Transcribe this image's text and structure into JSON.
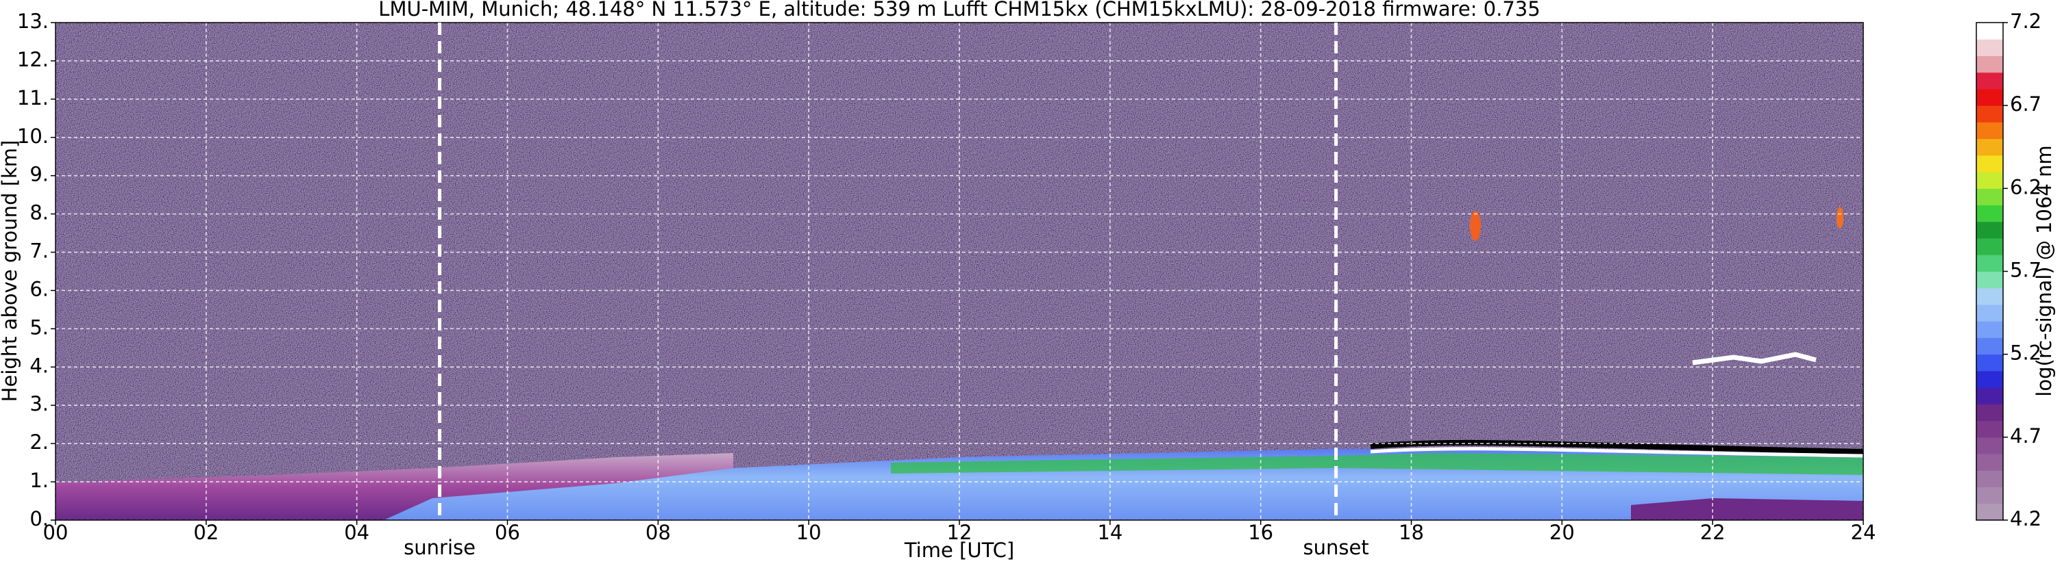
{
  "chart_data": {
    "type": "heatmap",
    "title": "LMU-MIM, Munich; 48.148° N 11.573° E, altitude: 539 m    Lufft CHM15kx (CHM15kxLMU): 28-09-2018    firmware: 0.735",
    "x_label": "Time [UTC]",
    "y_label": "Height above ground [km]",
    "xlim": [
      0,
      24
    ],
    "xticks": [
      {
        "value": 0,
        "label": "00"
      },
      {
        "value": 2,
        "label": "02"
      },
      {
        "value": 4,
        "label": "04"
      },
      {
        "value": 6,
        "label": "06"
      },
      {
        "value": 8,
        "label": "08"
      },
      {
        "value": 10,
        "label": "10"
      },
      {
        "value": 12,
        "label": "12"
      },
      {
        "value": 14,
        "label": "14"
      },
      {
        "value": 16,
        "label": "16"
      },
      {
        "value": 18,
        "label": "18"
      },
      {
        "value": 20,
        "label": "20"
      },
      {
        "value": 22,
        "label": "22"
      },
      {
        "value": 24,
        "label": "24"
      }
    ],
    "ylim": [
      0,
      13
    ],
    "yticks": [
      {
        "value": 0,
        "label": "0."
      },
      {
        "value": 1,
        "label": "1."
      },
      {
        "value": 2,
        "label": "2."
      },
      {
        "value": 3,
        "label": "3."
      },
      {
        "value": 4,
        "label": "4."
      },
      {
        "value": 5,
        "label": "5."
      },
      {
        "value": 6,
        "label": "6."
      },
      {
        "value": 7,
        "label": "7."
      },
      {
        "value": 8,
        "label": "8."
      },
      {
        "value": 9,
        "label": "9."
      },
      {
        "value": 10,
        "label": "10."
      },
      {
        "value": 11,
        "label": "11."
      },
      {
        "value": 12,
        "label": "12."
      },
      {
        "value": 13,
        "label": "13."
      }
    ],
    "grid": true,
    "annotations": [
      {
        "text": "sunrise",
        "x": 5.1
      },
      {
        "text": "sunset",
        "x": 17.0
      }
    ],
    "colorbar": {
      "label": "log(rc-signal) @ 1064 nm",
      "lim": [
        4.2,
        7.2
      ],
      "ticks": [
        4.2,
        4.7,
        5.2,
        5.7,
        6.2,
        6.7,
        7.2
      ],
      "colors": [
        "#b09ab5",
        "#a88aae",
        "#9f78a6",
        "#95629d",
        "#8a4f94",
        "#7d3a8a",
        "#6d2a86",
        "#4a1fa8",
        "#2a2ad8",
        "#3b55f0",
        "#5b7ff5",
        "#79a0f8",
        "#93bbf8",
        "#a9d0f5",
        "#7fe0b0",
        "#4fd07a",
        "#2fb84a",
        "#1c9a32",
        "#3ccf3c",
        "#7fe03a",
        "#c8ec30",
        "#f5e020",
        "#f5b018",
        "#f57a10",
        "#f04010",
        "#e81010",
        "#e02040",
        "#e6a0a8",
        "#f0d0d4",
        "#ffffff"
      ]
    }
  }
}
